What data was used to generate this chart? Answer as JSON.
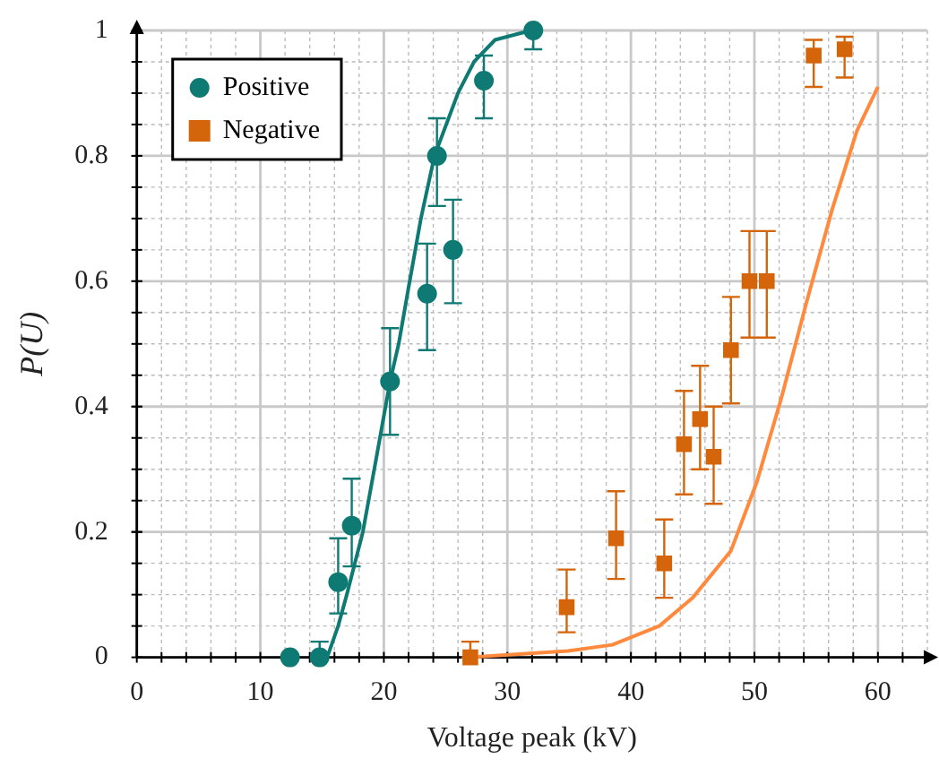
{
  "chart_data": {
    "type": "scatter",
    "xlabel": "Voltage peak (kV)",
    "ylabel": "P(U)",
    "xlim": [
      0,
      64
    ],
    "ylim": [
      0,
      1
    ],
    "xticks": [
      0,
      10,
      20,
      30,
      40,
      50,
      60
    ],
    "yticks": [
      0,
      0.2,
      0.4,
      0.6,
      0.8,
      1
    ],
    "grid": true,
    "legend": "top left",
    "series": [
      {
        "name": "Positive",
        "color": "#0e7a73",
        "marker": "circle",
        "x": [
          12.4,
          14.8,
          16.3,
          17.4,
          20.5,
          23.5,
          24.3,
          25.6,
          28.1,
          32.1
        ],
        "values": [
          0,
          0,
          0.12,
          0.21,
          0.44,
          0.58,
          0.8,
          0.65,
          0.92,
          1
        ],
        "errors": [
          null,
          [
            0,
            0.025
          ],
          [
            0.07,
            0.19
          ],
          [
            0.145,
            0.285
          ],
          [
            0.355,
            0.525
          ],
          [
            0.49,
            0.66
          ],
          [
            0.72,
            0.86
          ],
          [
            0.565,
            0.73
          ],
          [
            0.86,
            0.96
          ],
          [
            0.97,
            1
          ]
        ]
      },
      {
        "name": "Negative",
        "color": "#d4650a",
        "marker": "square",
        "x": [
          27.0,
          34.8,
          38.8,
          42.7,
          44.3,
          45.6,
          46.7,
          48.1,
          49.6,
          51.0,
          54.8,
          57.3
        ],
        "values": [
          0,
          0.08,
          0.19,
          0.15,
          0.34,
          0.38,
          0.32,
          0.49,
          0.6,
          0.6,
          0.96,
          0.97
        ],
        "errors": [
          [
            0,
            0.025
          ],
          [
            0.04,
            0.14
          ],
          [
            0.125,
            0.265
          ],
          [
            0.095,
            0.22
          ],
          [
            0.26,
            0.425
          ],
          [
            0.3,
            0.465
          ],
          [
            0.245,
            0.4
          ],
          [
            0.405,
            0.575
          ],
          [
            0.51,
            0.68
          ],
          [
            0.51,
            0.68
          ],
          [
            0.91,
            0.985
          ],
          [
            0.925,
            0.99
          ]
        ]
      },
      {
        "type": "line",
        "color": "#0e7a73",
        "marker": "none",
        "x": [
          14.7,
          15.5,
          16.3,
          17,
          18.3,
          19.5,
          20.5,
          21.2,
          22,
          23,
          24.1,
          26,
          27.3,
          29,
          31.9
        ],
        "values": [
          0,
          0.005,
          0.05,
          0.1,
          0.2,
          0.33,
          0.44,
          0.5,
          0.59,
          0.7,
          0.8,
          0.9,
          0.95,
          0.985,
          1
        ]
      },
      {
        "type": "line",
        "color": "#ff8a3d",
        "marker": "none",
        "x": [
          27,
          34.9,
          38.5,
          42.3,
          45,
          48.1,
          50.2,
          52.2,
          54.2,
          56.3,
          58.3,
          60
        ],
        "values": [
          0,
          0.01,
          0.02,
          0.05,
          0.095,
          0.17,
          0.28,
          0.415,
          0.565,
          0.715,
          0.84,
          0.91
        ]
      }
    ]
  }
}
